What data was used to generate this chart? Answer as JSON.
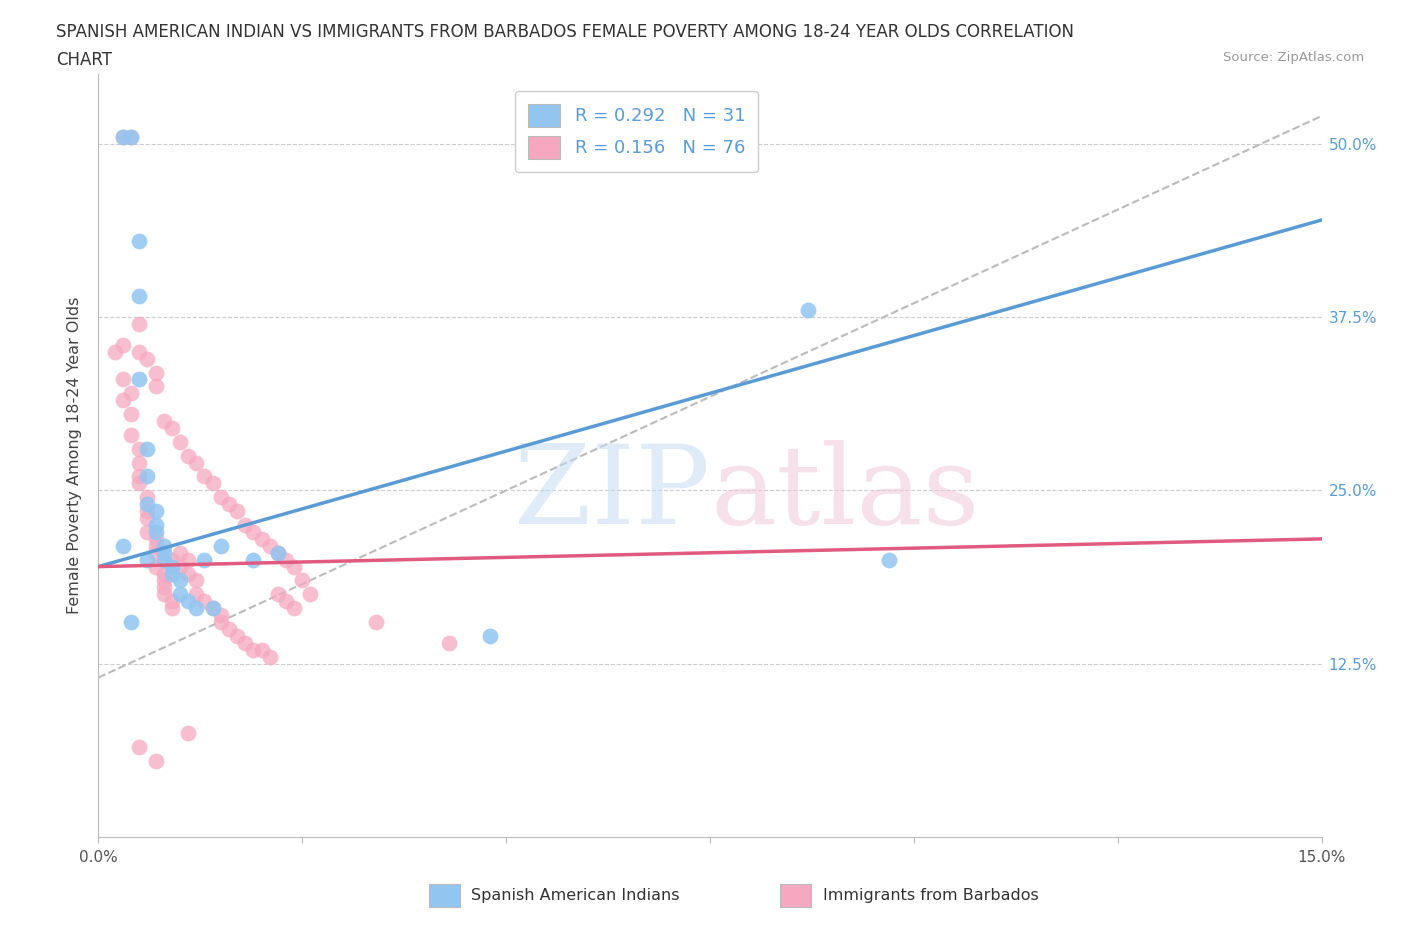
{
  "title_line1": "SPANISH AMERICAN INDIAN VS IMMIGRANTS FROM BARBADOS FEMALE POVERTY AMONG 18-24 YEAR OLDS CORRELATION",
  "title_line2": "CHART",
  "source": "Source: ZipAtlas.com",
  "ylabel": "Female Poverty Among 18-24 Year Olds",
  "xlim": [
    0.0,
    0.15
  ],
  "ylim": [
    0.0,
    0.55
  ],
  "xtick_positions": [
    0.0,
    0.025,
    0.05,
    0.075,
    0.1,
    0.125,
    0.15
  ],
  "xtick_labels": [
    "0.0%",
    "",
    "",
    "",
    "",
    "",
    "15.0%"
  ],
  "ytick_positions": [
    0.0,
    0.125,
    0.25,
    0.375,
    0.5
  ],
  "ytick_labels_right": [
    "",
    "12.5%",
    "25.0%",
    "37.5%",
    "50.0%"
  ],
  "blue_R": 0.292,
  "blue_N": 31,
  "pink_R": 0.156,
  "pink_N": 76,
  "blue_color": "#92C5F0",
  "pink_color": "#F5A8C0",
  "blue_line_color": "#5B9BD5",
  "pink_line_color": "#E05B7F",
  "dash_line_color": "#BBBBBB",
  "grid_color": "#CCCCCC",
  "legend_label_blue": "Spanish American Indians",
  "legend_label_pink": "Immigrants from Barbados",
  "blue_x": [
    0.003,
    0.004,
    0.005,
    0.005,
    0.005,
    0.006,
    0.006,
    0.006,
    0.007,
    0.007,
    0.007,
    0.008,
    0.008,
    0.008,
    0.009,
    0.009,
    0.01,
    0.01,
    0.011,
    0.012,
    0.013,
    0.014,
    0.015,
    0.019,
    0.022,
    0.004,
    0.003,
    0.006,
    0.048,
    0.087,
    0.097
  ],
  "blue_y": [
    0.505,
    0.505,
    0.43,
    0.39,
    0.33,
    0.28,
    0.26,
    0.24,
    0.235,
    0.225,
    0.22,
    0.21,
    0.205,
    0.2,
    0.195,
    0.19,
    0.185,
    0.175,
    0.17,
    0.165,
    0.2,
    0.165,
    0.21,
    0.2,
    0.205,
    0.155,
    0.21,
    0.2,
    0.145,
    0.38,
    0.2
  ],
  "pink_x": [
    0.002,
    0.003,
    0.003,
    0.003,
    0.004,
    0.004,
    0.004,
    0.005,
    0.005,
    0.005,
    0.005,
    0.006,
    0.006,
    0.006,
    0.006,
    0.007,
    0.007,
    0.007,
    0.007,
    0.008,
    0.008,
    0.008,
    0.008,
    0.009,
    0.009,
    0.009,
    0.01,
    0.01,
    0.011,
    0.011,
    0.012,
    0.012,
    0.013,
    0.014,
    0.015,
    0.015,
    0.016,
    0.017,
    0.018,
    0.019,
    0.02,
    0.021,
    0.022,
    0.023,
    0.024,
    0.003,
    0.004,
    0.005,
    0.005,
    0.006,
    0.007,
    0.007,
    0.008,
    0.009,
    0.01,
    0.011,
    0.012,
    0.013,
    0.014,
    0.015,
    0.016,
    0.017,
    0.018,
    0.019,
    0.02,
    0.021,
    0.022,
    0.023,
    0.024,
    0.025,
    0.026,
    0.034,
    0.043,
    0.005,
    0.007,
    0.011
  ],
  "pink_y": [
    0.35,
    0.355,
    0.33,
    0.315,
    0.32,
    0.305,
    0.29,
    0.28,
    0.27,
    0.26,
    0.255,
    0.245,
    0.235,
    0.23,
    0.22,
    0.215,
    0.21,
    0.205,
    0.195,
    0.19,
    0.185,
    0.18,
    0.175,
    0.17,
    0.165,
    0.2,
    0.195,
    0.205,
    0.2,
    0.19,
    0.185,
    0.175,
    0.17,
    0.165,
    0.16,
    0.155,
    0.15,
    0.145,
    0.14,
    0.135,
    0.135,
    0.13,
    0.175,
    0.17,
    0.165,
    0.505,
    0.505,
    0.37,
    0.35,
    0.345,
    0.335,
    0.325,
    0.3,
    0.295,
    0.285,
    0.275,
    0.27,
    0.26,
    0.255,
    0.245,
    0.24,
    0.235,
    0.225,
    0.22,
    0.215,
    0.21,
    0.205,
    0.2,
    0.195,
    0.185,
    0.175,
    0.155,
    0.14,
    0.065,
    0.055,
    0.075
  ],
  "blue_line_x0": 0.0,
  "blue_line_y0": 0.195,
  "blue_line_x1": 0.15,
  "blue_line_y1": 0.445,
  "pink_line_x0": 0.0,
  "pink_line_y0": 0.195,
  "pink_line_x1": 0.15,
  "pink_line_y1": 0.215,
  "dash_line_x0": 0.0,
  "dash_line_y0": 0.115,
  "dash_line_x1": 0.15,
  "dash_line_y1": 0.52
}
